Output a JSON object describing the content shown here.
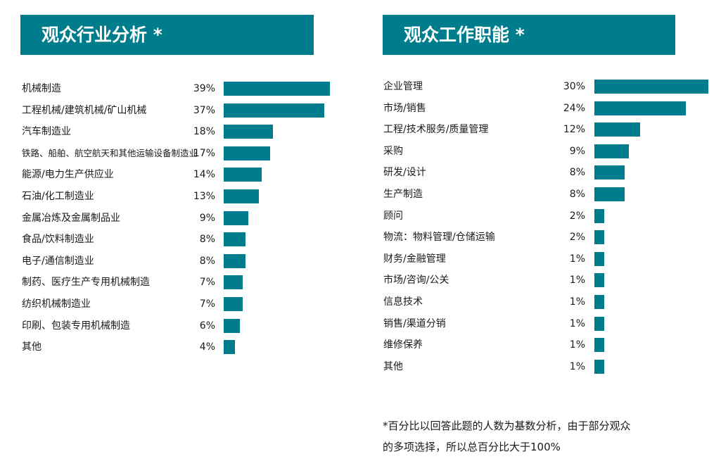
{
  "headers": {
    "left": "观众行业分析 *",
    "right": "观众工作职能 *"
  },
  "colors": {
    "bar": "#007d8c",
    "header_bg": "#007d8c"
  },
  "chart_data": [
    {
      "type": "bar",
      "orientation": "horizontal",
      "title": "观众行业分析 *",
      "unit": "%",
      "categories": [
        "机械制造",
        "工程机械/建筑机械/矿山机械",
        "汽车制造业",
        "铁路、船舶、航空航天和其他运输设备制造业",
        "能源/电力生产供应业",
        "石油/化工制造业",
        "金属冶炼及金属制品业",
        "食品/饮料制造业",
        "电子/通信制造业",
        "制药、医疗生产专用机械制造",
        "纺织机械制造业",
        "印刷、包装专用机械制造",
        "其他"
      ],
      "values": [
        39,
        37,
        18,
        17,
        14,
        13,
        9,
        8,
        8,
        7,
        7,
        6,
        4
      ],
      "labels": [
        "39%",
        "37%",
        "18%",
        "17%",
        "14%",
        "13%",
        "9%",
        "8%",
        "8%",
        "7%",
        "7%",
        "6%",
        "4%"
      ]
    },
    {
      "type": "bar",
      "orientation": "horizontal",
      "title": "观众工作职能 *",
      "unit": "%",
      "categories": [
        "企业管理",
        "市场/销售",
        "工程/技术服务/质量管理",
        "采购",
        "研发/设计",
        "生产制造",
        "顾问",
        "物流：物料管理/仓储运输",
        "财务/金融管理",
        "市场/咨询/公关",
        "信息技术",
        "销售/渠道分销",
        "维修保养",
        "其他"
      ],
      "values": [
        30,
        24,
        12,
        9,
        8,
        8,
        2,
        2,
        1,
        1,
        1,
        1,
        1,
        1
      ],
      "labels": [
        "30%",
        "24%",
        "12%",
        "9%",
        "8%",
        "8%",
        "2%",
        "2%",
        "1%",
        "1%",
        "1%",
        "1%",
        "1%",
        "1%"
      ]
    }
  ],
  "footnote": {
    "line1": "*百分比以回答此题的人数为基数分析，由于部分观众",
    "line2": "的多项选择，所以总百分比大于100%"
  }
}
